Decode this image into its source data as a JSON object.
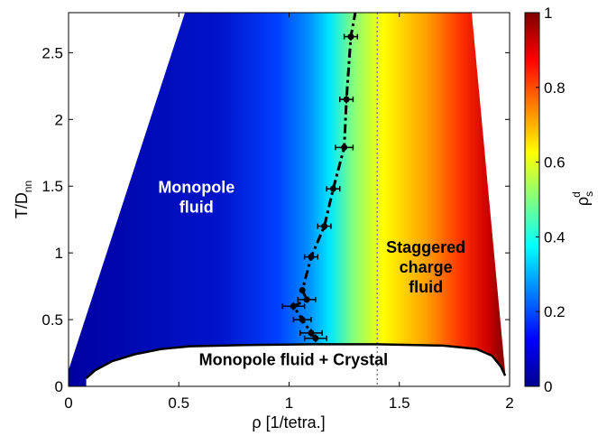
{
  "chart_data": {
    "type": "heatmap",
    "xlabel": "ρ [1/tetra.]",
    "ylabel": "T/D",
    "ylabel_sub": "nn",
    "colorbar_label": "ρ",
    "colorbar_label_sup": "d",
    "colorbar_label_sub": "s",
    "xlim": [
      0,
      2
    ],
    "ylim": [
      0,
      2.8
    ],
    "x_ticks": [
      0,
      0.5,
      1,
      1.5,
      2
    ],
    "x_tick_labels": [
      "0",
      "0.5",
      "1",
      "1.5",
      "2"
    ],
    "y_ticks": [
      0,
      0.5,
      1,
      1.5,
      2,
      2.5
    ],
    "y_tick_labels": [
      "0",
      "0.5",
      "1",
      "1.5",
      "2",
      "2.5"
    ],
    "colorbar": {
      "range": [
        0,
        1
      ],
      "ticks": [
        0,
        0.2,
        0.4,
        0.6,
        0.8,
        1
      ],
      "tick_labels": [
        "0",
        "0.2",
        "0.4",
        "0.6",
        "0.8",
        "1"
      ],
      "colormap": "jet"
    },
    "annotations": [
      {
        "lines": [
          "Monopole",
          "fluid"
        ],
        "x": 0.58,
        "y": 1.45,
        "color": "#ffffff"
      },
      {
        "lines": [
          "Staggered",
          "charge",
          "fluid"
        ],
        "x": 1.62,
        "y": 1.0,
        "color": "#000000"
      },
      {
        "lines": [
          "Monopole fluid + Crystal"
        ],
        "x": 1.02,
        "y": 0.16,
        "color": "#000000"
      }
    ],
    "dotted_vline_x": 1.4,
    "crystal_boundary": {
      "x": [
        0.08,
        0.12,
        0.2,
        0.3,
        0.42,
        0.55,
        0.8,
        1.1,
        1.4,
        1.7,
        1.85,
        1.92,
        1.96,
        1.98
      ],
      "y": [
        0.06,
        0.12,
        0.19,
        0.24,
        0.28,
        0.3,
        0.31,
        0.315,
        0.315,
        0.305,
        0.28,
        0.23,
        0.15,
        0.08
      ]
    },
    "series": [
      {
        "type": "line-errorbar",
        "style": "dash-dot",
        "x": [
          1.12,
          1.1,
          1.06,
          1.02,
          1.08,
          1.06,
          1.1,
          1.16,
          1.2,
          1.25,
          1.26,
          1.28,
          1.3
        ],
        "y": [
          0.36,
          0.4,
          0.5,
          0.6,
          0.65,
          0.72,
          0.97,
          1.2,
          1.48,
          1.79,
          2.15,
          2.62,
          2.8
        ],
        "xerr": [
          0.05,
          0.05,
          0.04,
          0.05,
          0.04,
          0.0,
          0.03,
          0.03,
          0.03,
          0.04,
          0.03,
          0.03,
          0.0
        ],
        "yerr": [
          0.03,
          0.03,
          0.03,
          0.03,
          0.02,
          0.0,
          0.03,
          0.03,
          0.03,
          0.03,
          0.03,
          0.03,
          0.0
        ],
        "marker_count": 12
      }
    ],
    "grid": false
  }
}
